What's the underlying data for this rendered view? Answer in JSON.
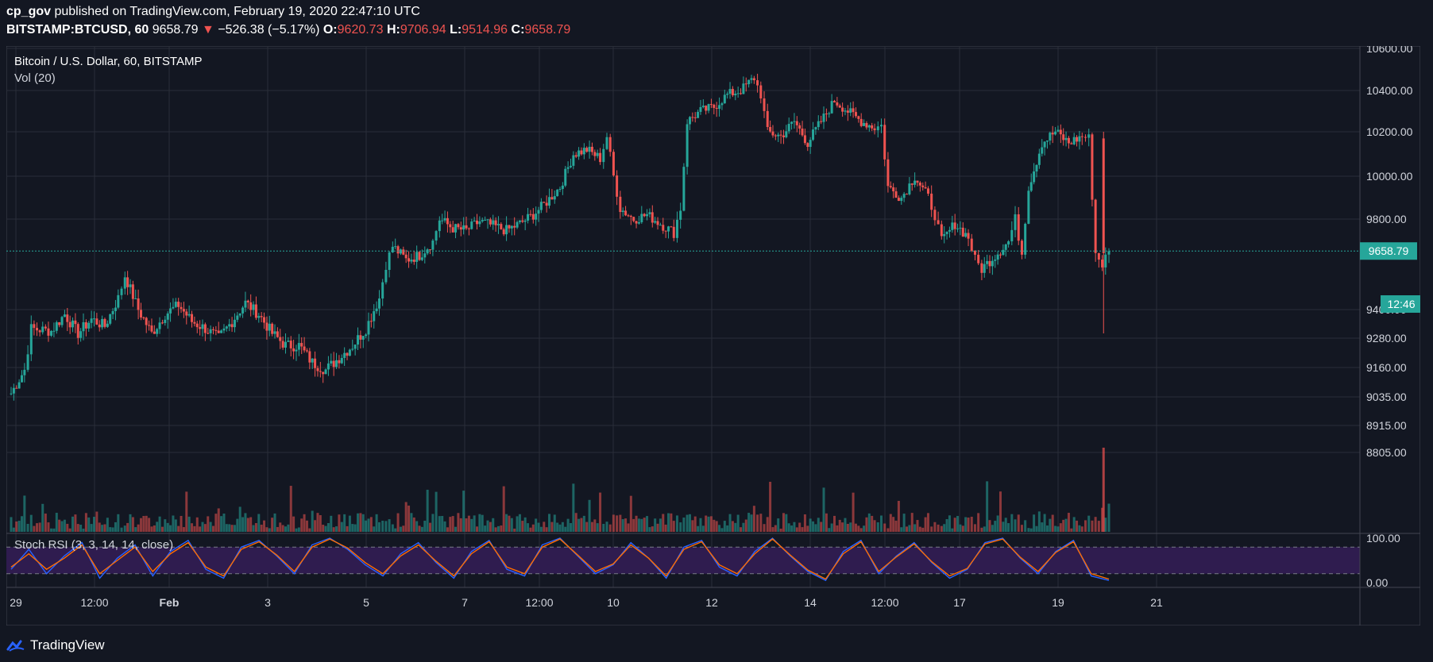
{
  "header": {
    "author": "cp_gov",
    "published_text": "published on TradingView.com, February 19, 2020 22:47:10 UTC",
    "symbol": "BITSTAMP:BTCUSD, 60",
    "last": "9658.79",
    "change_arrow": "▼",
    "change": "−526.38 (−5.17%)",
    "o_label": "O:",
    "o": "9620.73",
    "h_label": "H:",
    "h": "9706.94",
    "l_label": "L:",
    "l": "9514.96",
    "c_label": "C:",
    "c": "9658.79"
  },
  "legend": {
    "main": "Bitcoin / U.S. Dollar, 60, BITSTAMP",
    "volume": "Vol (20)",
    "stoch": "Stoch RSI (3, 3, 14, 14, close)"
  },
  "price_label": {
    "value": "9658.79",
    "countdown": "12:46"
  },
  "footer": {
    "brand": "TradingView",
    "logo_icon": "tradingview-logo-icon"
  },
  "colors": {
    "background": "#131722",
    "grid": "#2a2e39",
    "up": "#26a69a",
    "down": "#ef5350",
    "k_line": "#2962ff",
    "d_line": "#ff6d00",
    "stoch_band": "#2f1c4f"
  },
  "chart_data": [
    {
      "type": "candlestick",
      "title": "Bitcoin / U.S. Dollar, 60, BITSTAMP",
      "y_ticks": [
        10600,
        10400,
        10200,
        10000,
        9800,
        9400,
        9280,
        9160,
        9035,
        8915,
        8805
      ],
      "y_tick_labels": [
        "10600.00",
        "10400.00",
        "10200.00",
        "10000.00",
        "9800.00",
        "9400.00",
        "9280.00",
        "9160.00",
        "9035.00",
        "8915.00",
        "8805.00"
      ],
      "ylim": [
        8760,
        10660
      ],
      "x_tick_labels": [
        "29",
        "12:00",
        "Feb",
        "3",
        "5",
        "7",
        "12:00",
        "10",
        "12",
        "14",
        "12:00",
        "17",
        "19",
        "21"
      ],
      "current_price": 9658.79,
      "path_points": [
        [
          0,
          9050
        ],
        [
          2,
          9150
        ],
        [
          3,
          9320
        ],
        [
          6,
          9310
        ],
        [
          8,
          9380
        ],
        [
          10,
          9300
        ],
        [
          12,
          9360
        ],
        [
          14,
          9330
        ],
        [
          16,
          9450
        ],
        [
          17,
          9550
        ],
        [
          19,
          9400
        ],
        [
          21,
          9300
        ],
        [
          23,
          9380
        ],
        [
          25,
          9420
        ],
        [
          27,
          9350
        ],
        [
          29,
          9320
        ],
        [
          31,
          9280
        ],
        [
          33,
          9350
        ],
        [
          35,
          9430
        ],
        [
          37,
          9380
        ],
        [
          39,
          9300
        ],
        [
          41,
          9250
        ],
        [
          43,
          9250
        ],
        [
          45,
          9180
        ],
        [
          47,
          9150
        ],
        [
          49,
          9200
        ],
        [
          51,
          9250
        ],
        [
          53,
          9320
        ],
        [
          55,
          9450
        ],
        [
          56,
          9600
        ],
        [
          57,
          9680
        ],
        [
          59,
          9620
        ],
        [
          61,
          9640
        ],
        [
          63,
          9700
        ],
        [
          64,
          9800
        ],
        [
          66,
          9760
        ],
        [
          68,
          9750
        ],
        [
          70,
          9790
        ],
        [
          72,
          9770
        ],
        [
          74,
          9750
        ],
        [
          76,
          9780
        ],
        [
          78,
          9820
        ],
        [
          80,
          9880
        ],
        [
          82,
          9950
        ],
        [
          84,
          10100
        ],
        [
          86,
          10120
        ],
        [
          88,
          10080
        ],
        [
          89,
          10180
        ],
        [
          90,
          10000
        ],
        [
          91,
          9850
        ],
        [
          93,
          9800
        ],
        [
          95,
          9820
        ],
        [
          97,
          9780
        ],
        [
          99,
          9740
        ],
        [
          100,
          9850
        ],
        [
          101,
          10250
        ],
        [
          103,
          10300
        ],
        [
          105,
          10320
        ],
        [
          107,
          10380
        ],
        [
          109,
          10400
        ],
        [
          111,
          10460
        ],
        [
          112,
          10380
        ],
        [
          113,
          10200
        ],
        [
          115,
          10180
        ],
        [
          117,
          10250
        ],
        [
          119,
          10150
        ],
        [
          121,
          10250
        ],
        [
          123,
          10350
        ],
        [
          125,
          10300
        ],
        [
          127,
          10250
        ],
        [
          129,
          10220
        ],
        [
          130,
          10230
        ],
        [
          131,
          9950
        ],
        [
          133,
          9900
        ],
        [
          135,
          10000
        ],
        [
          137,
          9900
        ],
        [
          138,
          9820
        ],
        [
          139,
          9700
        ],
        [
          141,
          9780
        ],
        [
          143,
          9720
        ],
        [
          144,
          9620
        ],
        [
          145,
          9580
        ],
        [
          147,
          9640
        ],
        [
          149,
          9700
        ],
        [
          150,
          9800
        ],
        [
          151,
          9650
        ],
        [
          152,
          9950
        ],
        [
          154,
          10150
        ],
        [
          156,
          10200
        ],
        [
          158,
          10150
        ],
        [
          160,
          10180
        ],
        [
          161,
          10170
        ],
        [
          162,
          9650
        ],
        [
          163,
          9600
        ],
        [
          164,
          9658
        ]
      ],
      "price_range_shown": [
        9035,
        10600
      ]
    },
    {
      "type": "bar",
      "title": "Vol (20)",
      "values_note": "relative volume bars, larger spikes near Feb 5, Feb 11-12, Feb 13, Feb 16, Feb 19-20"
    },
    {
      "type": "line",
      "title": "Stoch RSI (3, 3, 14, 14, close)",
      "y_tick_labels": [
        "100.00",
        "0.00"
      ],
      "ylim": [
        0,
        100
      ],
      "bands": [
        20,
        80
      ],
      "series": [
        {
          "name": "K",
          "values": [
            30,
            75,
            20,
            60,
            90,
            10,
            55,
            85,
            15,
            70,
            95,
            30,
            10,
            80,
            95,
            60,
            20,
            85,
            100,
            75,
            40,
            15,
            65,
            90,
            45,
            10,
            70,
            95,
            30,
            15,
            85,
            100,
            60,
            20,
            40,
            90,
            55,
            10,
            80,
            95,
            35,
            15,
            70,
            100,
            60,
            25,
            5,
            70,
            95,
            20,
            60,
            90,
            45,
            10,
            30,
            90,
            100,
            55,
            20,
            70,
            95,
            15,
            5
          ]
        },
        {
          "name": "D",
          "values": [
            35,
            65,
            30,
            55,
            85,
            20,
            50,
            80,
            25,
            65,
            90,
            35,
            15,
            75,
            92,
            62,
            25,
            80,
            98,
            78,
            45,
            20,
            60,
            85,
            48,
            15,
            65,
            92,
            35,
            20,
            80,
            98,
            62,
            25,
            42,
            85,
            55,
            15,
            75,
            92,
            40,
            20,
            65,
            98,
            62,
            28,
            8,
            65,
            92,
            25,
            58,
            87,
            47,
            15,
            32,
            87,
            98,
            57,
            25,
            68,
            92,
            20,
            8
          ]
        }
      ]
    }
  ]
}
